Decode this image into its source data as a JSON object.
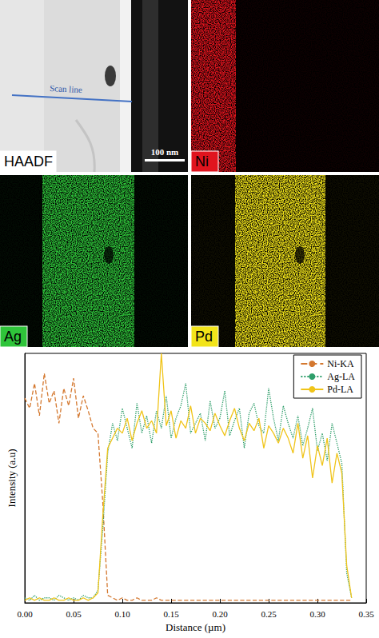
{
  "panels": [
    {
      "label": "HAADF",
      "color": "#ffffff",
      "annotations": [
        "Scan line"
      ],
      "scale_bar": "100 nm"
    },
    {
      "label": "Ni",
      "color": "#e0141e"
    },
    {
      "label": "Ag",
      "color": "#2fc43a"
    },
    {
      "label": "Pd",
      "color": "#f2e41a"
    }
  ],
  "chart_data": {
    "type": "line",
    "xlabel": "Distance (µm)",
    "ylabel": "Intensity (a.u)",
    "x": [
      0,
      0.005,
      0.01,
      0.015,
      0.02,
      0.025,
      0.03,
      0.035,
      0.04,
      0.045,
      0.05,
      0.055,
      0.06,
      0.065,
      0.07,
      0.075,
      0.08,
      0.085,
      0.09,
      0.095,
      0.1,
      0.105,
      0.11,
      0.115,
      0.12,
      0.125,
      0.13,
      0.135,
      0.14,
      0.145,
      0.15,
      0.155,
      0.16,
      0.165,
      0.17,
      0.175,
      0.18,
      0.185,
      0.19,
      0.195,
      0.2,
      0.205,
      0.21,
      0.215,
      0.22,
      0.225,
      0.23,
      0.235,
      0.24,
      0.245,
      0.25,
      0.255,
      0.26,
      0.265,
      0.27,
      0.275,
      0.28,
      0.285,
      0.29,
      0.295,
      0.3,
      0.305,
      0.31,
      0.315,
      0.32,
      0.325,
      0.33,
      0.335
    ],
    "series": [
      {
        "name": "Ni-KA",
        "color": "#d4782f",
        "line_style": "dashed",
        "values": [
          82,
          78,
          88,
          75,
          92,
          80,
          85,
          72,
          86,
          79,
          90,
          74,
          83,
          77,
          70,
          68,
          40,
          3,
          2,
          1,
          2,
          1,
          1,
          2,
          1,
          1,
          1,
          2,
          1,
          1,
          1,
          1,
          1,
          1,
          1,
          1,
          1,
          1,
          1,
          1,
          1,
          1,
          1,
          1,
          1,
          1,
          1,
          1,
          1,
          1,
          1,
          1,
          1,
          1,
          1,
          1,
          1,
          1,
          1,
          1,
          1,
          1,
          1,
          1,
          1,
          1,
          1,
          1
        ]
      },
      {
        "name": "Ag-LA",
        "color": "#2e9e6a",
        "line_style": "dotted",
        "values": [
          2,
          1,
          3,
          1,
          2,
          2,
          1,
          3,
          2,
          1,
          2,
          1,
          3,
          2,
          2,
          5,
          30,
          60,
          72,
          65,
          78,
          70,
          62,
          80,
          68,
          75,
          64,
          77,
          70,
          83,
          66,
          74,
          79,
          88,
          68,
          72,
          76,
          65,
          81,
          70,
          74,
          85,
          67,
          73,
          78,
          62,
          76,
          80,
          71,
          68,
          86,
          74,
          65,
          79,
          72,
          66,
          75,
          63,
          70,
          78,
          61,
          68,
          57,
          72,
          64,
          56,
          12,
          2
        ]
      },
      {
        "name": "Pd-LA",
        "color": "#f0c419",
        "line_style": "solid",
        "values": [
          1,
          2,
          1,
          2,
          1,
          1,
          2,
          1,
          1,
          2,
          1,
          1,
          2,
          1,
          2,
          4,
          35,
          62,
          66,
          70,
          68,
          74,
          65,
          72,
          77,
          70,
          73,
          68,
          100,
          71,
          77,
          66,
          73,
          70,
          79,
          68,
          74,
          72,
          69,
          76,
          71,
          67,
          73,
          78,
          70,
          65,
          72,
          69,
          74,
          62,
          71,
          68,
          64,
          70,
          66,
          60,
          72,
          58,
          67,
          50,
          63,
          55,
          66,
          48,
          60,
          52,
          15,
          2
        ]
      }
    ],
    "xlim": [
      0,
      0.35
    ],
    "xticks": [
      {
        "value": 0,
        "label": "0.00"
      },
      {
        "value": 0.05,
        "label": "0.05"
      },
      {
        "value": 0.1,
        "label": "0.10"
      },
      {
        "value": 0.15,
        "label": "0.15"
      },
      {
        "value": 0.2,
        "label": "0.20"
      },
      {
        "value": 0.25,
        "label": "0.25"
      },
      {
        "value": 0.3,
        "label": "0.30"
      },
      {
        "value": 0.35,
        "label": "0.35"
      }
    ],
    "ylim": [
      0,
      100
    ],
    "tick_labels": "x",
    "legend": "top-right",
    "grid": false
  }
}
